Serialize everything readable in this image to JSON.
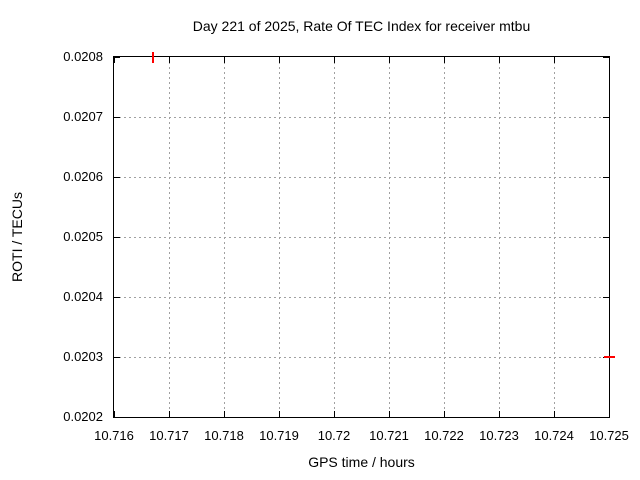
{
  "chart_data": {
    "type": "scatter",
    "title": "Day 221 of 2025, Rate Of TEC Index for receiver mtbu",
    "xlabel": "GPS time / hours",
    "ylabel": "ROTI / TECUs",
    "xlim": [
      10.716,
      10.725
    ],
    "ylim": [
      0.0202,
      0.0208
    ],
    "x_ticks": [
      {
        "value": 10.716,
        "label": "10.716"
      },
      {
        "value": 10.717,
        "label": "10.717"
      },
      {
        "value": 10.718,
        "label": "10.718"
      },
      {
        "value": 10.719,
        "label": "10.719"
      },
      {
        "value": 10.72,
        "label": "10.72"
      },
      {
        "value": 10.721,
        "label": "10.721"
      },
      {
        "value": 10.722,
        "label": "10.722"
      },
      {
        "value": 10.723,
        "label": "10.723"
      },
      {
        "value": 10.724,
        "label": "10.724"
      },
      {
        "value": 10.725,
        "label": "10.725"
      }
    ],
    "y_ticks": [
      {
        "value": 0.0202,
        "label": "0.0202"
      },
      {
        "value": 0.0203,
        "label": "0.0203"
      },
      {
        "value": 0.0204,
        "label": "0.0204"
      },
      {
        "value": 0.0205,
        "label": "0.0205"
      },
      {
        "value": 0.0206,
        "label": "0.0206"
      },
      {
        "value": 0.0207,
        "label": "0.0207"
      },
      {
        "value": 0.0208,
        "label": "0.0208"
      }
    ],
    "grid": {
      "style": "dashed",
      "color": "#a0a0a0",
      "visible": true
    },
    "legend": "none",
    "colors": {
      "marker": "#ff0000",
      "grid": "#a0a0a0",
      "border": "#000000",
      "background": "#ffffff",
      "text": "#000000"
    },
    "series": [
      {
        "name": "ROTI",
        "color": "#ff0000",
        "style": "errorbar-marks",
        "points": [
          {
            "x": 10.7167,
            "y": 0.0208,
            "mark": "vertical"
          },
          {
            "x": 10.725,
            "y": 0.0203,
            "mark": "horizontal"
          }
        ]
      }
    ]
  }
}
